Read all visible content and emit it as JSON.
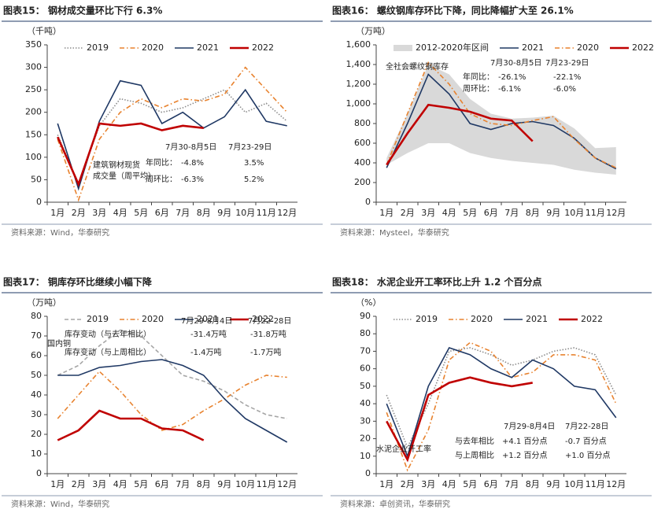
{
  "chart_data": [
    {
      "type": "line",
      "title": "图表15： 钢材成交量环比下行 6.3%",
      "unit": "（千吨）",
      "source": "资料来源：Wind，华泰研究",
      "categories": [
        "1月",
        "2月",
        "3月",
        "4月",
        "5月",
        "6月",
        "7月",
        "8月",
        "9月",
        "10月",
        "11月",
        "12月"
      ],
      "ylim": [
        0,
        350
      ],
      "yticks": [
        0,
        50,
        100,
        150,
        200,
        250,
        300,
        350
      ],
      "legend": "top",
      "series": [
        {
          "name": "2019",
          "color": "#8c8c8c",
          "style": "dotted",
          "values": [
            150,
            40,
            170,
            230,
            220,
            200,
            210,
            230,
            250,
            200,
            220,
            180
          ]
        },
        {
          "name": "2020",
          "color": "#e8822e",
          "style": "dashdot",
          "values": [
            140,
            5,
            140,
            200,
            230,
            210,
            230,
            225,
            240,
            300,
            250,
            200
          ]
        },
        {
          "name": "2021",
          "color": "#1f3864",
          "style": "solid",
          "values": [
            175,
            30,
            180,
            270,
            260,
            175,
            200,
            165,
            190,
            250,
            180,
            170
          ]
        },
        {
          "name": "2022",
          "color": "#c00000",
          "style": "bold",
          "values": [
            145,
            40,
            175,
            170,
            175,
            160,
            170,
            165,
            null,
            null,
            null,
            null
          ]
        }
      ],
      "annotations": [
        "7月30-8月5日",
        "7月23-29日",
        "建筑钢材现货",
        "成交量（周平均）",
        "年同比：",
        "-4.8%",
        "3.5%",
        "周环比：",
        "-6.3%",
        "5.2%"
      ]
    },
    {
      "type": "line",
      "title": "图表16： 螺纹钢库存环比下降，同比降幅扩大至 26.1%",
      "unit": "（万吨）",
      "source": "资料来源：Mysteel，华泰研究",
      "categories": [
        "1月",
        "2月",
        "3月",
        "4月",
        "5月",
        "6月",
        "7月",
        "8月",
        "9月",
        "10月",
        "11月",
        "12月"
      ],
      "ylim": [
        0,
        1600
      ],
      "yticks": [
        0,
        200,
        400,
        600,
        800,
        {
          "value": 1000,
          "label": "1,000"
        },
        {
          "value": 1200,
          "label": "1,200"
        },
        {
          "value": 1400,
          "label": "1,400"
        },
        {
          "value": 1600,
          "label": "1,600"
        }
      ],
      "legend": "top",
      "series": [
        {
          "name": "2012-2020年区间",
          "color": "#d9d9d9",
          "style": "band",
          "low": [
            380,
            500,
            600,
            600,
            500,
            450,
            420,
            400,
            380,
            330,
            300,
            280
          ],
          "high": [
            450,
            900,
            1400,
            1300,
            1050,
            900,
            850,
            860,
            880,
            750,
            550,
            560
          ]
        },
        {
          "name": "2021",
          "color": "#1f3864",
          "style": "solid",
          "values": [
            350,
            800,
            1300,
            1100,
            800,
            740,
            800,
            820,
            780,
            650,
            450,
            340
          ]
        },
        {
          "name": "2020",
          "color": "#e8822e",
          "style": "dashdot",
          "values": [
            380,
            900,
            1420,
            1200,
            900,
            800,
            780,
            830,
            870,
            640,
            450,
            350
          ]
        },
        {
          "name": "2022",
          "color": "#c00000",
          "style": "bold",
          "values": [
            380,
            700,
            990,
            960,
            920,
            850,
            830,
            620,
            null,
            null,
            null,
            null
          ]
        }
      ],
      "annotations": [
        "全社会螺纹钢库存",
        "7月30-8月5日",
        "7月23-29日",
        "年同比：",
        "-26.1%",
        "-22.1%",
        "周环比：",
        "-6.1%",
        "-6.0%"
      ]
    },
    {
      "type": "line",
      "title": "图表17： 铜库存环比继续小幅下降",
      "unit": "（万吨）",
      "source": "资料来源：Wind，华泰研究",
      "categories": [
        "1月",
        "2月",
        "3月",
        "4月",
        "5月",
        "6月",
        "7月",
        "8月",
        "9月",
        "10月",
        "11月",
        "12月"
      ],
      "ylim": [
        0,
        80
      ],
      "yticks": [
        0,
        10,
        20,
        30,
        40,
        50,
        60,
        70,
        80
      ],
      "legend": "top",
      "series": [
        {
          "name": "2019",
          "color": "#a6a6a6",
          "style": "dashed",
          "values": [
            50,
            55,
            65,
            73,
            70,
            60,
            50,
            47,
            42,
            35,
            30,
            28
          ]
        },
        {
          "name": "2020",
          "color": "#e8822e",
          "style": "dashdot",
          "values": [
            28,
            40,
            52,
            42,
            30,
            22,
            25,
            32,
            38,
            45,
            50,
            49
          ]
        },
        {
          "name": "2021",
          "color": "#1f3864",
          "style": "solid",
          "values": [
            50,
            50,
            54,
            55,
            57,
            58,
            55,
            50,
            38,
            28,
            22,
            16
          ]
        },
        {
          "name": "2022",
          "color": "#c00000",
          "style": "bold",
          "values": [
            17,
            22,
            32,
            28,
            28,
            23,
            22,
            17,
            null,
            null,
            null,
            null
          ]
        }
      ],
      "annotations": [
        "7月29-8月4日",
        "7月22-28日",
        "库存变动（与去年相比）",
        "-31.4万吨",
        "-31.8万吨",
        "库存变动（与上周相比）",
        "-1.4万吨",
        "-1.7万吨",
        "国内铜"
      ]
    },
    {
      "type": "line",
      "title": "图表18： 水泥企业开工率环比上升 1.2 个百分点",
      "unit": "（%）",
      "source": "资料来源：卓创资讯，华泰研究",
      "categories": [
        "1月",
        "2月",
        "3月",
        "4月",
        "5月",
        "6月",
        "7月",
        "8月",
        "9月",
        "10月",
        "11月",
        "12月"
      ],
      "ylim": [
        0,
        90
      ],
      "yticks": [
        0,
        10,
        20,
        30,
        40,
        50,
        60,
        70,
        80,
        90
      ],
      "legend": "top",
      "series": [
        {
          "name": "2019",
          "color": "#8c8c8c",
          "style": "dotted",
          "values": [
            45,
            15,
            40,
            70,
            72,
            68,
            62,
            65,
            70,
            72,
            68,
            45
          ]
        },
        {
          "name": "2020",
          "color": "#e8822e",
          "style": "dashdot",
          "values": [
            35,
            2,
            25,
            65,
            75,
            70,
            55,
            58,
            68,
            68,
            65,
            40
          ]
        },
        {
          "name": "2021",
          "color": "#1f3864",
          "style": "solid",
          "values": [
            40,
            10,
            50,
            72,
            68,
            60,
            55,
            65,
            60,
            50,
            48,
            32
          ]
        },
        {
          "name": "2022",
          "color": "#c00000",
          "style": "bold",
          "values": [
            30,
            8,
            45,
            52,
            55,
            52,
            50,
            52,
            null,
            null,
            null,
            null
          ]
        }
      ],
      "annotations": [
        "7月29-8月4日",
        "7月22-28日",
        "与去年相比",
        "+4.1 百分点",
        "-0.7 百分点",
        "与上周相比",
        "+1.2 百分点",
        "+1.0 百分点",
        "水泥企业开工率"
      ]
    }
  ]
}
